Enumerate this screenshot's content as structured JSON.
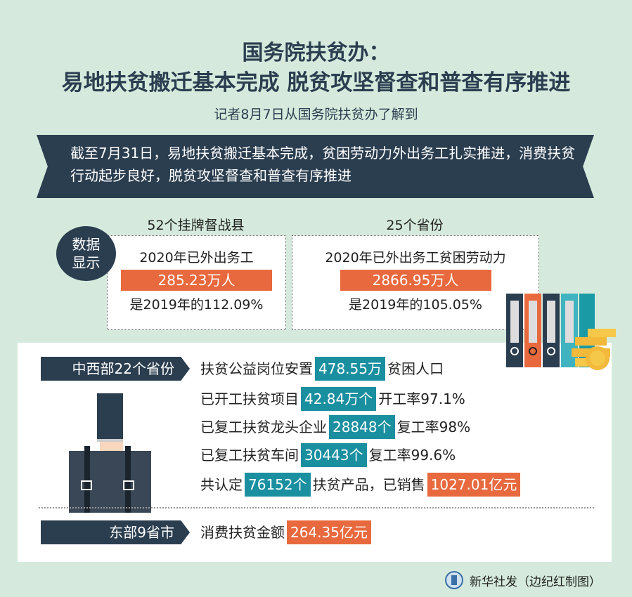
{
  "title": {
    "line1": "国务院扶贫办：",
    "line2": "易地扶贫搬迁基本完成 脱贫攻坚督查和普查有序推进",
    "subtitle": "记者8月7日从国务院扶贫办了解到"
  },
  "banner": {
    "text": "截至7月31日，易地扶贫搬迁基本完成，贫困劳动力外出务工扎实推进，消费扶贫行动起步良好，脱贫攻坚督查和普查有序推进"
  },
  "data_badge": {
    "line1": "数据",
    "line2": "显示"
  },
  "cards": [
    {
      "caption": "52个挂牌督战县",
      "label": "2020年已外出务工",
      "value": "285.23万人",
      "compare": "是2019年的112.09%"
    },
    {
      "caption": "25个省份",
      "label": "2020年已外出务工贫困劳动力",
      "value": "2866.95万人",
      "compare": "是2019年的105.05%"
    }
  ],
  "central": {
    "tag": "中西部22个省份",
    "rows": [
      {
        "pre": "扶贫公益岗位安置",
        "value": "478.55万",
        "post": "贫困人口"
      },
      {
        "pre": "已开工扶贫项目",
        "value": "42.84万个",
        "post": "开工率97.1%"
      },
      {
        "pre": "已复工扶贫龙头企业",
        "value": "28848个",
        "post": "复工率98%"
      },
      {
        "pre": "已复工扶贫车间",
        "value": "30443个",
        "post": "复工率99.6%"
      },
      {
        "pre": "共认定",
        "value": "76152个",
        "post": "扶贫产品，已销售",
        "value2": "1027.01亿元"
      }
    ]
  },
  "east": {
    "tag": "东部9省市",
    "pre": "消费扶贫金额",
    "value": "264.35亿元"
  },
  "footer": {
    "credit": "新华社发（边纪红制图）"
  },
  "colors": {
    "background": "#d5eadc",
    "navy": "#2b3e50",
    "orange": "#e8693e",
    "teal": "#1a8fa0"
  }
}
